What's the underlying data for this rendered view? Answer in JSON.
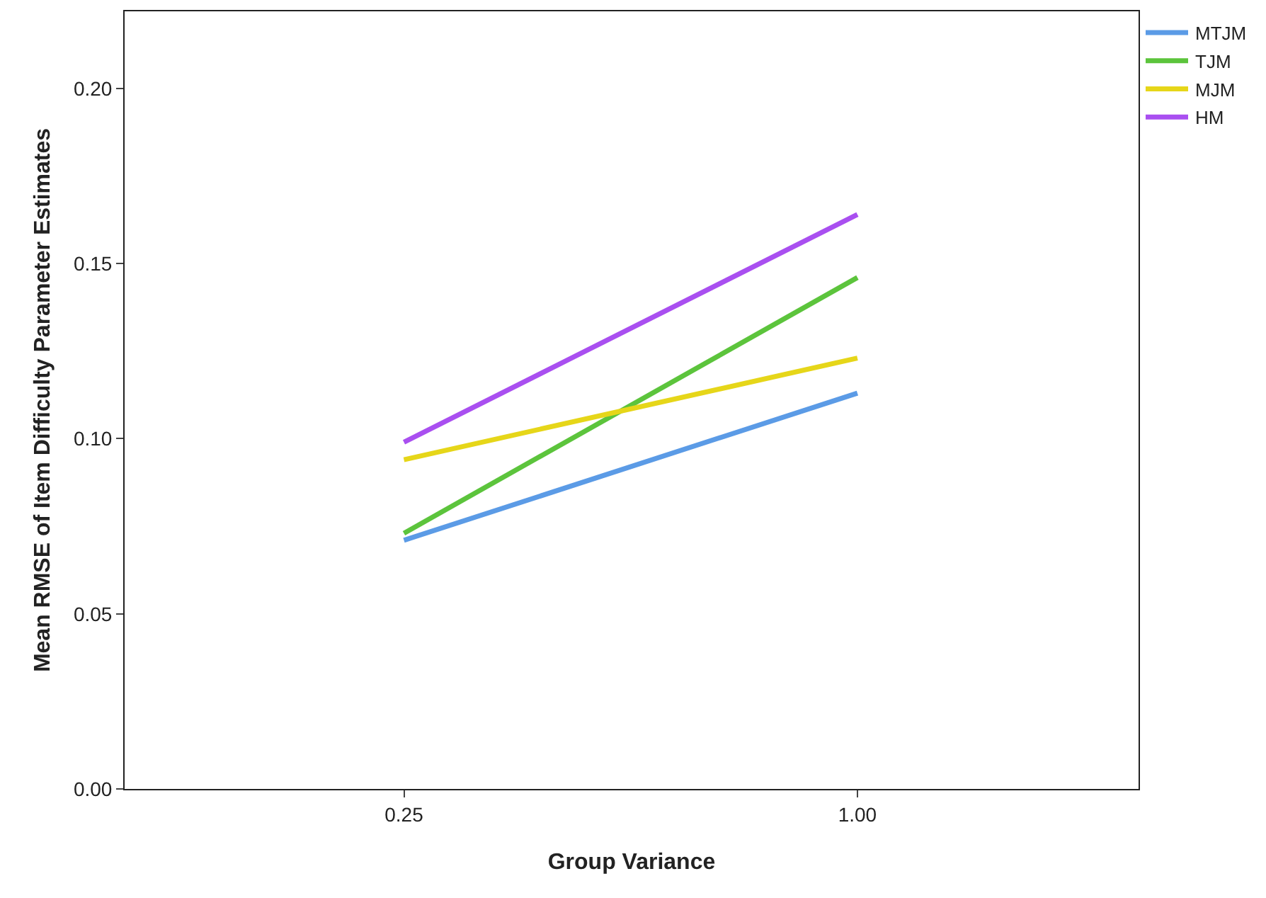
{
  "chart_data": {
    "type": "line",
    "xlabel": "Group Variance",
    "ylabel": "Mean RMSE of Item Difficulty Parameter Estimates",
    "categories": [
      "0.25",
      "1.00"
    ],
    "ylim": [
      0,
      0.222
    ],
    "yticks": [
      {
        "value": 0,
        "label": "0.00"
      },
      {
        "value": 0.05,
        "label": "0.05"
      },
      {
        "value": 0.1,
        "label": "0.10"
      },
      {
        "value": 0.15,
        "label": "0.15"
      },
      {
        "value": 0.2,
        "label": "0.20"
      }
    ],
    "legend": "top right",
    "marker": "none",
    "line_style": "solid",
    "series": [
      {
        "name": "MTJM",
        "color": "#5b9be6",
        "values": [
          0.071,
          0.113
        ]
      },
      {
        "name": "TJM",
        "color": "#5cc43c",
        "values": [
          0.073,
          0.146
        ]
      },
      {
        "name": "MJM",
        "color": "#e6d619",
        "values": [
          0.094,
          0.123
        ]
      },
      {
        "name": "HM",
        "color": "#a94ff0",
        "values": [
          0.099,
          0.164
        ]
      }
    ]
  }
}
